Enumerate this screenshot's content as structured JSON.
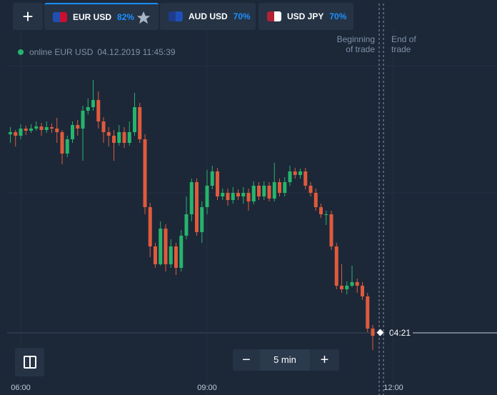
{
  "tabs": [
    {
      "name": "EUR USD",
      "payout": "82%"
    },
    {
      "name": "AUD USD",
      "payout": "70%"
    },
    {
      "name": "USD JPY",
      "payout": "70%"
    }
  ],
  "status": {
    "text": "online EUR USD",
    "timestamp": "04.12.2019 11:45:39"
  },
  "trade_labels": {
    "beginning": "Beginning of trade",
    "end": "End of trade"
  },
  "countdown": "04:21",
  "timeframe": "5 min",
  "chart_data": {
    "type": "candlestick",
    "x": [
      "05:50",
      "05:55",
      "06:00",
      "06:05",
      "06:10",
      "06:15",
      "06:20",
      "06:25",
      "06:30",
      "06:35",
      "06:40",
      "06:45",
      "06:50",
      "06:55",
      "07:00",
      "07:05",
      "07:10",
      "07:15",
      "07:20",
      "07:25",
      "07:30",
      "07:35",
      "07:40",
      "07:45",
      "07:50",
      "07:55",
      "08:00",
      "08:05",
      "08:10",
      "08:15",
      "08:20",
      "08:25",
      "08:30",
      "08:35",
      "08:40",
      "08:45",
      "08:50",
      "08:55",
      "09:00",
      "09:05",
      "09:10",
      "09:15",
      "09:20",
      "09:25",
      "09:30",
      "09:35",
      "09:40",
      "09:45",
      "09:50",
      "09:55",
      "10:00",
      "10:05",
      "10:10",
      "10:15",
      "10:20",
      "10:25",
      "10:30",
      "10:35",
      "10:40",
      "10:45",
      "10:50",
      "10:55",
      "11:00",
      "11:05",
      "11:10",
      "11:15",
      "11:20",
      "11:25",
      "11:30",
      "11:35",
      "11:40"
    ],
    "open": [
      312,
      315,
      310,
      320,
      317,
      320,
      323,
      318,
      322,
      320,
      315,
      285,
      305,
      325,
      320,
      345,
      350,
      360,
      330,
      315,
      310,
      300,
      315,
      300,
      315,
      350,
      305,
      210,
      155,
      130,
      180,
      130,
      155,
      125,
      170,
      200,
      245,
      175,
      210,
      240,
      260,
      225,
      230,
      220,
      230,
      225,
      230,
      218,
      240,
      225,
      240,
      222,
      245,
      230,
      245,
      260,
      255,
      260,
      240,
      230,
      210,
      200,
      200,
      155,
      100,
      95,
      100,
      105,
      100,
      85,
      40
    ],
    "high": [
      322,
      318,
      326,
      324,
      326,
      330,
      328,
      330,
      327,
      335,
      318,
      310,
      330,
      332,
      352,
      362,
      388,
      372,
      336,
      322,
      318,
      325,
      322,
      330,
      370,
      356,
      312,
      216,
      160,
      190,
      186,
      165,
      160,
      178,
      225,
      250,
      250,
      218,
      262,
      268,
      265,
      236,
      236,
      238,
      235,
      238,
      236,
      246,
      245,
      246,
      245,
      272,
      250,
      252,
      268,
      265,
      264,
      265,
      245,
      236,
      215,
      205,
      205,
      160,
      130,
      106,
      128,
      110,
      105,
      90,
      45
    ],
    "low": [
      300,
      295,
      305,
      311,
      314,
      317,
      310,
      314,
      314,
      300,
      270,
      280,
      300,
      310,
      275,
      340,
      345,
      320,
      300,
      295,
      275,
      296,
      293,
      296,
      310,
      300,
      200,
      140,
      125,
      128,
      120,
      125,
      115,
      120,
      165,
      190,
      170,
      160,
      200,
      235,
      220,
      220,
      212,
      215,
      220,
      215,
      205,
      214,
      220,
      220,
      218,
      218,
      225,
      225,
      240,
      250,
      250,
      235,
      225,
      205,
      195,
      185,
      150,
      95,
      90,
      88,
      98,
      90,
      80,
      35,
      10
    ],
    "close": [
      315,
      310,
      320,
      317,
      320,
      323,
      318,
      322,
      320,
      315,
      285,
      305,
      325,
      320,
      345,
      350,
      360,
      330,
      315,
      310,
      300,
      315,
      300,
      315,
      350,
      305,
      210,
      155,
      130,
      180,
      130,
      155,
      125,
      170,
      200,
      245,
      175,
      210,
      240,
      260,
      225,
      230,
      220,
      230,
      225,
      230,
      218,
      240,
      225,
      240,
      222,
      245,
      230,
      245,
      260,
      255,
      260,
      240,
      230,
      210,
      200,
      200,
      155,
      100,
      95,
      100,
      105,
      100,
      85,
      40,
      30
    ],
    "up_color": "#26b46c",
    "down_color": "#e05a3c",
    "xlim": [
      "05:40",
      "13:40"
    ],
    "ylim": [
      0,
      500
    ],
    "xticks": [
      "06:00",
      "09:00",
      "12:00"
    ]
  }
}
